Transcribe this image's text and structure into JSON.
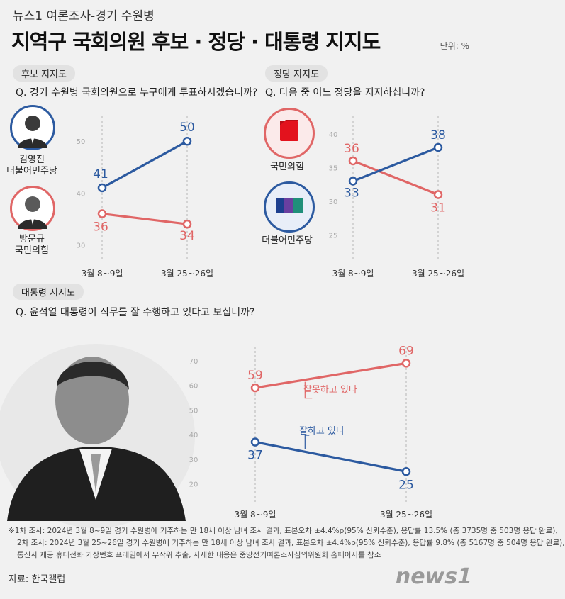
{
  "header": {
    "kicker": "뉴스1 여론조사-경기 수원병",
    "headline": "지역구 국회의원 후보 · 정당 · 대통령 지지도",
    "unit": "단위: %"
  },
  "sections": {
    "candidate": {
      "label": "후보 지지도",
      "question": "Q. 경기 수원병 국회의원으로 누구에게 투표하시겠습니까?",
      "people": [
        {
          "name": "김영진",
          "party": "더불어민주당",
          "color": "#2c5aa0"
        },
        {
          "name": "방문규",
          "party": "국민의힘",
          "color": "#e06666"
        }
      ]
    },
    "party": {
      "label": "정당 지지도",
      "question": "Q. 다음 중 어느 정당을 지지하십니까?",
      "parties": [
        {
          "name": "국민의힘",
          "color": "#e06666"
        },
        {
          "name": "더불어민주당",
          "color": "#2c5aa0"
        }
      ]
    },
    "president": {
      "label": "대통령 지지도",
      "question": "Q. 윤석열 대통령이 직무를 잘 수행하고 있다고 보십니까?"
    }
  },
  "chart_data": [
    {
      "type": "line",
      "categories": [
        "3월 8~9일",
        "3월 25~26일"
      ],
      "yticks": [
        30,
        40,
        50
      ],
      "ylim": [
        28,
        54
      ],
      "series": [
        {
          "name": "김영진",
          "values": [
            41,
            50
          ],
          "color": "#2c5aa0"
        },
        {
          "name": "방문규",
          "values": [
            36,
            34
          ],
          "color": "#e06666"
        }
      ]
    },
    {
      "type": "line",
      "categories": [
        "3월 8~9일",
        "3월 25~26일"
      ],
      "yticks": [
        25,
        30,
        35,
        40
      ],
      "ylim": [
        22,
        42
      ],
      "series": [
        {
          "name": "국민의힘",
          "values": [
            36,
            31
          ],
          "color": "#e06666"
        },
        {
          "name": "더불어민주당",
          "values": [
            33,
            38
          ],
          "color": "#2c5aa0"
        }
      ]
    },
    {
      "type": "line",
      "categories": [
        "3월 8~9일",
        "3월 25~26일"
      ],
      "yticks": [
        20,
        30,
        40,
        50,
        60,
        70
      ],
      "ylim": [
        15,
        74
      ],
      "series": [
        {
          "name": "잘못하고 있다",
          "values": [
            59,
            69
          ],
          "color": "#e06666"
        },
        {
          "name": "잘하고 있다",
          "values": [
            37,
            25
          ],
          "color": "#2c5aa0"
        }
      ]
    }
  ],
  "footer": {
    "notes": [
      "※1차 조사: 2024년 3월 8~9일 경기 수원병에 거주하는 만 18세 이상 남녀 조사 결과, 표본오차 ±4.4%p(95% 신뢰수준), 응답률 13.5% (총 3735명 중 503명 응답 완료),",
      "2차 조사: 2024년 3월 25~26일 경기 수원병에 거주하는 만 18세 이상 남녀 조사 결과, 표본오차 ±4.4%p(95% 신뢰수준), 응답률 9.8% (총 5167명 중 504명 응답 완료),",
      "통신사 제공 휴대전화 가상번호 프레임에서 무작위 추출, 자세한 내용은 중앙선거여론조사심의위원회 홈페이지를 참조"
    ],
    "source": "자료: 한국갤럽",
    "logo": "news1"
  }
}
